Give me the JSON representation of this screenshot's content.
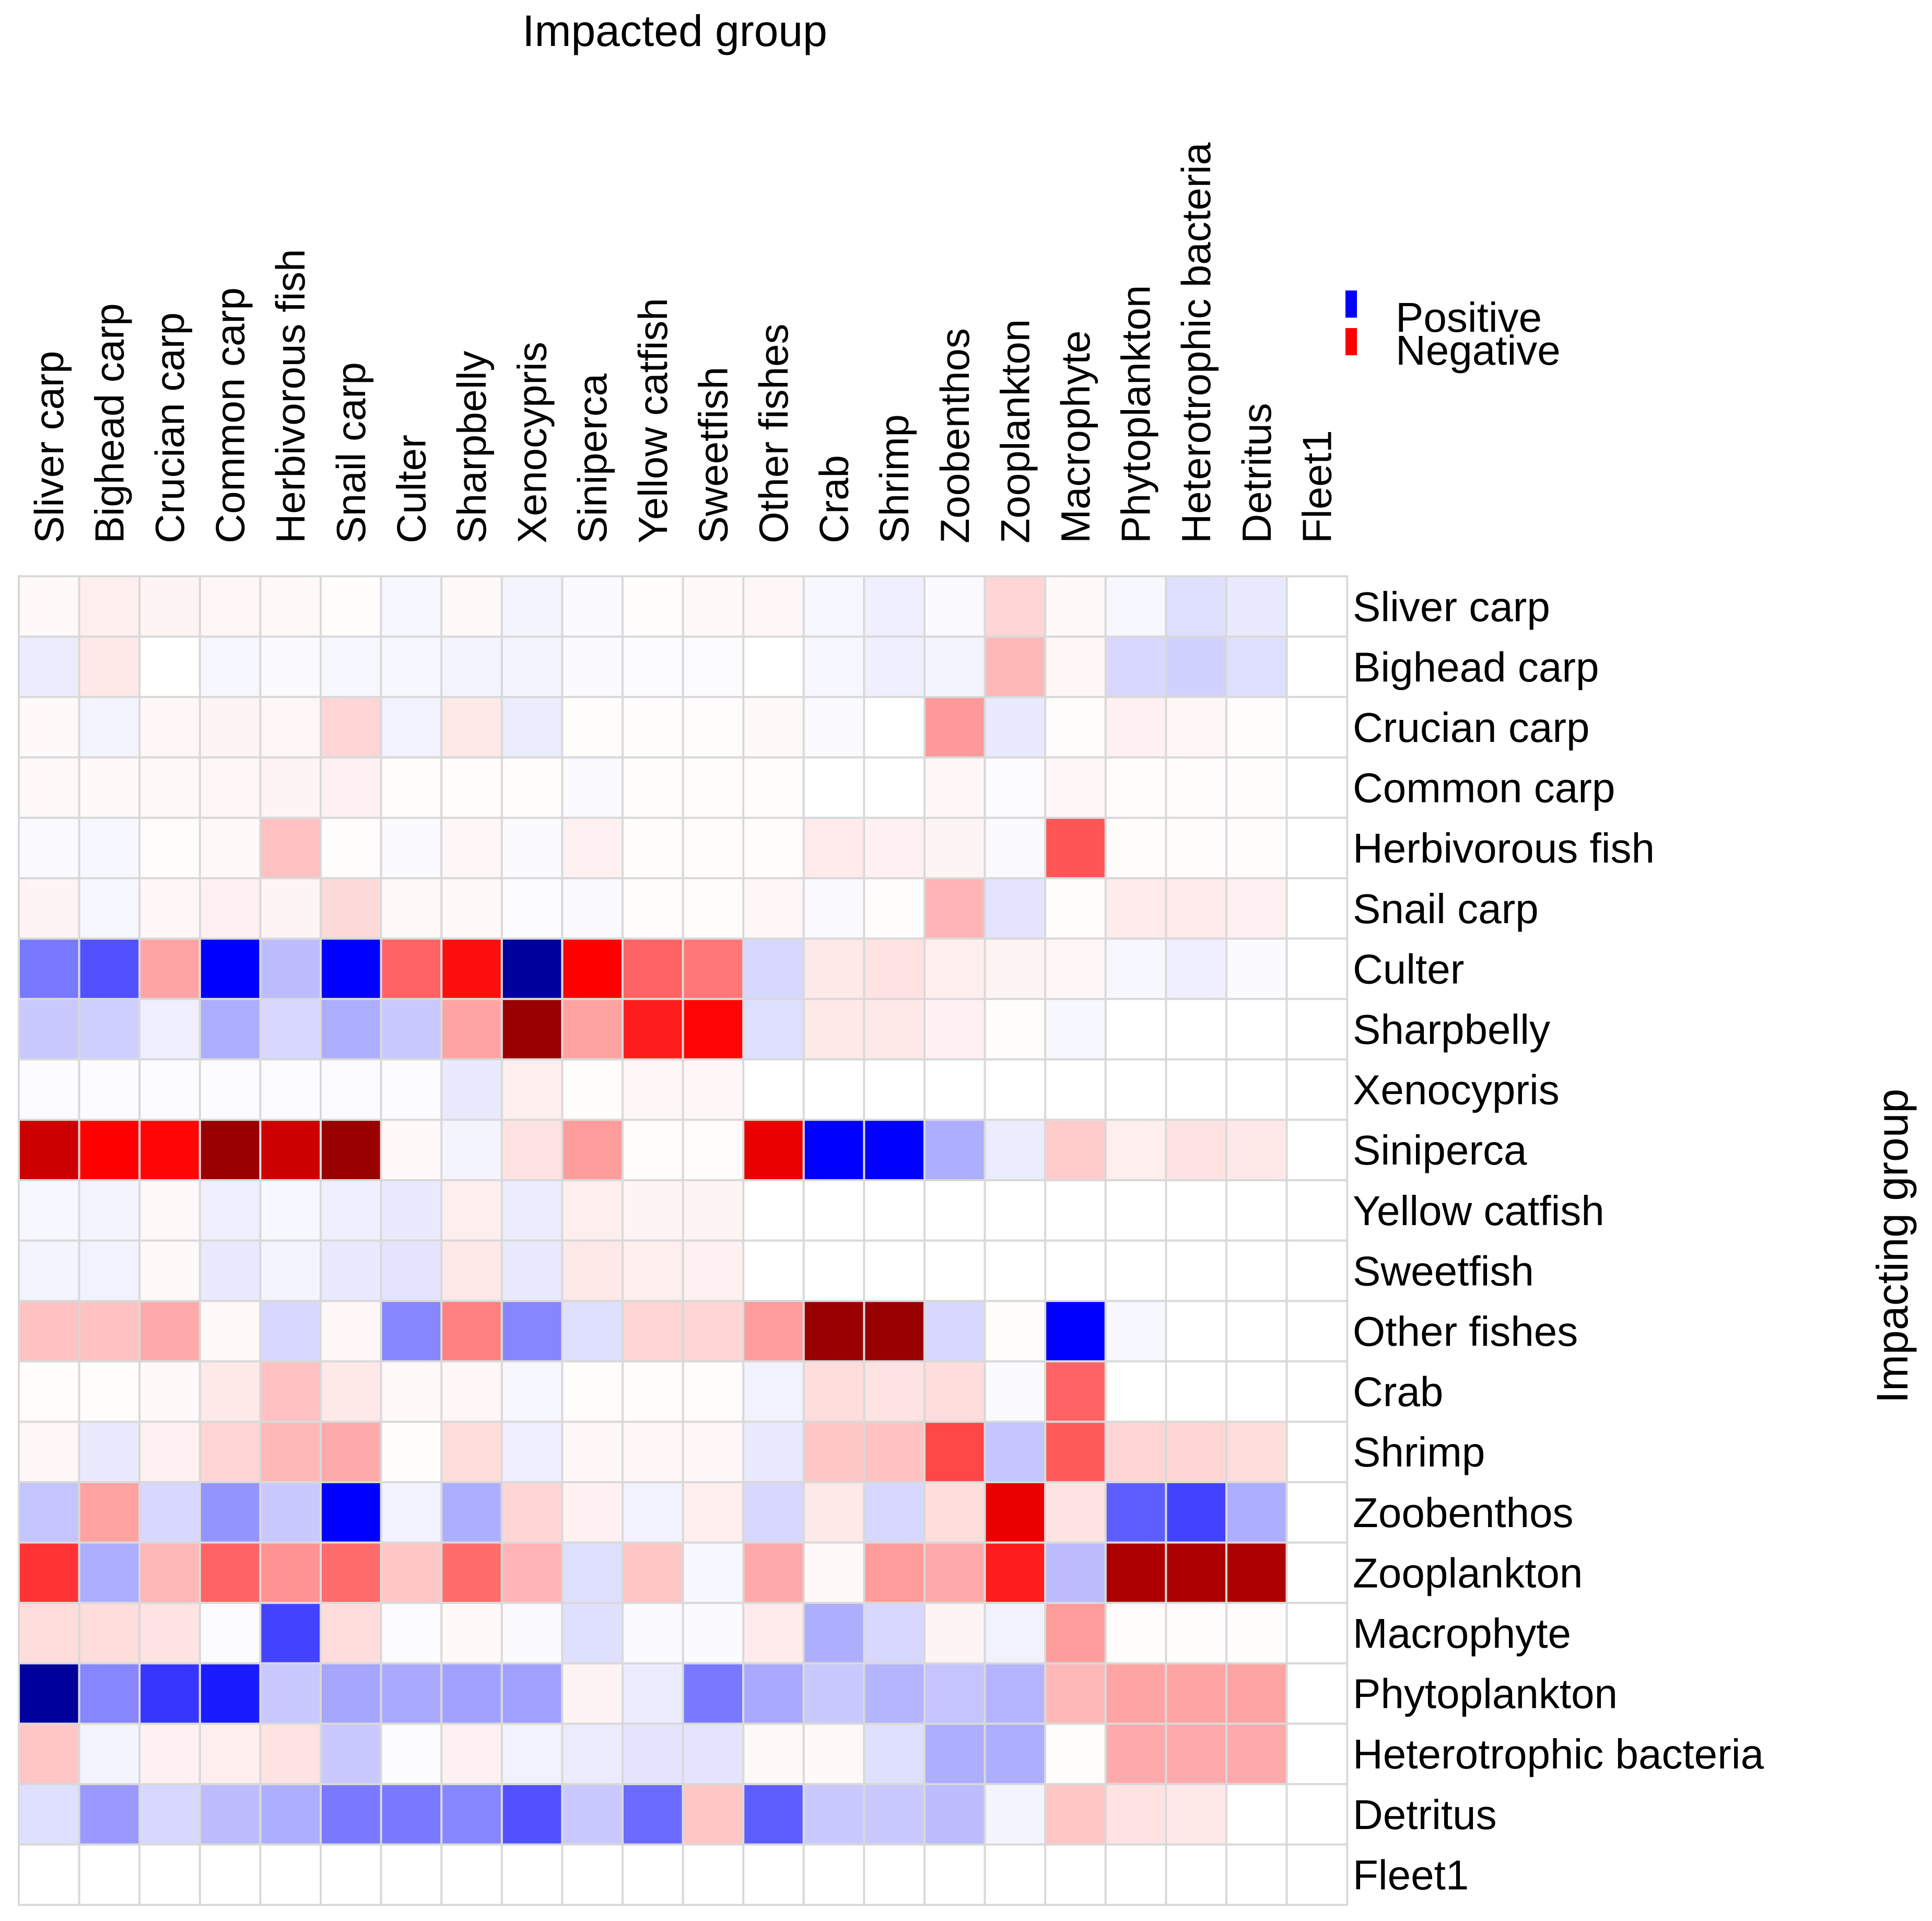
{
  "chart_data": {
    "type": "heatmap",
    "title": "",
    "xlabel": "Impacted group",
    "ylabel": "Impacting group",
    "columns": [
      "Sliver carp",
      "Bighead carp",
      "Crucian carp",
      "Common carp",
      "Herbivorous fish",
      "Snail carp",
      "Culter",
      "Sharpbelly",
      "Xenocypris",
      "Siniperca",
      "Yellow catfish",
      "Sweetfish",
      "Other fishes",
      "Crab",
      "Shrimp",
      "Zoobenthos",
      "Zooplankton",
      "Macrophyte",
      "Phytoplankton",
      "Heterotrophic bacteria",
      "Detritus",
      "Fleet1"
    ],
    "rows": [
      "Sliver carp",
      "Bighead carp",
      "Crucian carp",
      "Common carp",
      "Herbivorous fish",
      "Snail carp",
      "Culter",
      "Sharpbelly",
      "Xenocypris",
      "Siniperca",
      "Yellow catfish",
      "Sweetfish",
      "Other fishes",
      "Crab",
      "Shrimp",
      "Zoobenthos",
      "Zooplankton",
      "Macrophyte",
      "Phytoplankton",
      "Heterotrophic bacteria",
      "Detritus",
      "Fleet1"
    ],
    "value_range": [
      -1,
      1
    ],
    "color_scale": {
      "positive": "#0000ff",
      "zero": "#ffffff",
      "negative": "#ff0000",
      "extreme_negative": "#990000",
      "extreme_positive": "#00009c"
    },
    "values": [
      [
        -0.02,
        -0.06,
        -0.04,
        -0.03,
        -0.02,
        -0.01,
        0.03,
        -0.02,
        0.04,
        0.02,
        -0.01,
        -0.02,
        -0.03,
        0.03,
        0.06,
        0.02,
        -0.15,
        -0.02,
        0.03,
        0.12,
        0.08,
        0
      ],
      [
        0.07,
        -0.08,
        0,
        0.03,
        0.02,
        0.03,
        0.03,
        0.04,
        0.04,
        0.02,
        0.01,
        0.01,
        0,
        0.03,
        0.06,
        0.04,
        -0.25,
        -0.03,
        0.15,
        0.17,
        0.12,
        0
      ],
      [
        -0.02,
        0.04,
        -0.03,
        -0.04,
        -0.03,
        -0.15,
        0.05,
        -0.08,
        0.07,
        -0.01,
        -0.01,
        -0.01,
        -0.02,
        0.02,
        0,
        -0.36,
        0.08,
        -0.01,
        -0.05,
        -0.03,
        -0.01,
        0
      ],
      [
        -0.02,
        -0.02,
        -0.02,
        -0.03,
        -0.04,
        -0.05,
        -0.01,
        -0.01,
        -0.01,
        0.02,
        -0.01,
        -0.01,
        -0.01,
        0,
        0,
        -0.03,
        0.01,
        -0.03,
        -0.01,
        -0.01,
        -0.01,
        0
      ],
      [
        0.02,
        0.03,
        -0.01,
        -0.02,
        -0.22,
        -0.01,
        0.02,
        -0.03,
        0.02,
        -0.05,
        -0.01,
        -0.01,
        -0.01,
        -0.07,
        -0.05,
        -0.04,
        0.02,
        -0.6,
        -0.01,
        -0.01,
        -0.01,
        0
      ],
      [
        -0.04,
        0.03,
        -0.03,
        -0.05,
        -0.04,
        -0.13,
        -0.02,
        -0.02,
        0.01,
        0.02,
        -0.01,
        -0.01,
        -0.03,
        0.02,
        -0.01,
        -0.26,
        0.1,
        -0.01,
        -0.07,
        -0.07,
        -0.05,
        0
      ],
      [
        0.5,
        0.65,
        -0.32,
        0.95,
        0.25,
        0.95,
        -0.55,
        -0.85,
        1.0,
        -0.9,
        -0.55,
        -0.48,
        0.15,
        -0.08,
        -0.1,
        -0.06,
        -0.04,
        -0.03,
        0.03,
        0.06,
        0.02,
        0
      ],
      [
        0.2,
        0.18,
        0.06,
        0.3,
        0.15,
        0.3,
        0.2,
        -0.32,
        -1.0,
        -0.33,
        -0.8,
        -0.88,
        0.12,
        -0.08,
        -0.08,
        -0.05,
        -0.01,
        0.03,
        0,
        0,
        0,
        0
      ],
      [
        0.01,
        0.01,
        0.01,
        0.01,
        0.01,
        0.01,
        0.01,
        0.08,
        -0.06,
        -0.01,
        -0.03,
        -0.03,
        0,
        0,
        0,
        0,
        0,
        0,
        0,
        0,
        0,
        0
      ],
      [
        -0.95,
        -0.9,
        -0.88,
        -1.0,
        -0.95,
        -1.0,
        -0.02,
        0.04,
        -0.1,
        -0.35,
        -0.01,
        -0.01,
        -0.92,
        0.95,
        0.95,
        0.3,
        0.07,
        -0.18,
        -0.06,
        -0.1,
        -0.08,
        0
      ],
      [
        0.03,
        0.04,
        -0.02,
        0.06,
        0.03,
        0.06,
        0.08,
        -0.06,
        0.07,
        -0.06,
        -0.04,
        -0.04,
        0,
        0,
        0,
        0,
        0,
        0,
        0,
        0,
        0,
        0
      ],
      [
        0.04,
        0.05,
        -0.02,
        0.08,
        0.04,
        0.08,
        0.1,
        -0.08,
        0.08,
        -0.08,
        -0.06,
        -0.05,
        0,
        0,
        0,
        0,
        0,
        0,
        0,
        0,
        0,
        0
      ],
      [
        -0.22,
        -0.22,
        -0.3,
        -0.02,
        0.15,
        -0.03,
        0.45,
        -0.45,
        0.45,
        0.12,
        -0.15,
        -0.15,
        -0.35,
        -1.0,
        -1.0,
        0.15,
        -0.01,
        0.95,
        0.03,
        0,
        0,
        0
      ],
      [
        -0.01,
        -0.01,
        -0.02,
        -0.08,
        -0.22,
        -0.08,
        -0.02,
        -0.03,
        0.03,
        -0.01,
        -0.01,
        -0.01,
        0.05,
        -0.12,
        -0.1,
        -0.12,
        0.02,
        -0.55,
        0,
        0,
        0,
        0
      ],
      [
        -0.03,
        0.08,
        -0.05,
        -0.15,
        -0.25,
        -0.3,
        -0.01,
        -0.12,
        0.06,
        -0.03,
        -0.03,
        -0.03,
        0.08,
        -0.2,
        -0.22,
        -0.65,
        0.22,
        -0.58,
        -0.15,
        -0.15,
        -0.12,
        0
      ],
      [
        0.22,
        -0.33,
        0.15,
        0.4,
        0.2,
        0.95,
        0.05,
        0.3,
        -0.15,
        -0.05,
        0.05,
        -0.06,
        0.15,
        -0.08,
        0.15,
        -0.12,
        -0.92,
        -0.1,
        0.6,
        0.7,
        0.3,
        0
      ],
      [
        -0.72,
        0.3,
        -0.25,
        -0.55,
        -0.38,
        -0.52,
        -0.2,
        -0.52,
        -0.26,
        0.12,
        -0.2,
        0.03,
        -0.3,
        -0.02,
        -0.35,
        -0.3,
        -0.8,
        0.25,
        -0.98,
        -0.98,
        -0.98,
        0
      ],
      [
        -0.12,
        -0.12,
        -0.1,
        0.01,
        0.7,
        -0.12,
        0.01,
        -0.02,
        0.02,
        0.12,
        0.02,
        0.02,
        -0.07,
        0.3,
        0.15,
        -0.04,
        0.05,
        -0.35,
        -0.01,
        -0.01,
        -0.01,
        0
      ],
      [
        1.0,
        0.45,
        0.75,
        0.85,
        0.2,
        0.33,
        0.32,
        0.35,
        0.35,
        -0.04,
        0.07,
        0.5,
        0.32,
        0.2,
        0.28,
        0.22,
        0.28,
        -0.25,
        -0.32,
        -0.32,
        -0.32,
        0
      ],
      [
        -0.2,
        0.04,
        -0.05,
        -0.06,
        -0.1,
        0.2,
        0.01,
        -0.05,
        0.05,
        0.07,
        0.1,
        0.1,
        -0.02,
        -0.02,
        0.12,
        0.3,
        0.3,
        -0.01,
        -0.3,
        -0.3,
        -0.3,
        0
      ],
      [
        0.12,
        0.38,
        0.15,
        0.25,
        0.3,
        0.5,
        0.5,
        0.45,
        0.65,
        0.2,
        0.55,
        -0.2,
        0.6,
        0.2,
        0.2,
        0.25,
        0.04,
        -0.2,
        -0.1,
        -0.08,
        0,
        0
      ],
      [
        0,
        0,
        0,
        0,
        0,
        0,
        0,
        0,
        0,
        0,
        0,
        0,
        0,
        0,
        0,
        0,
        0,
        0,
        0,
        0,
        0,
        0
      ]
    ],
    "legend": [
      "Positive",
      "Negative"
    ]
  }
}
